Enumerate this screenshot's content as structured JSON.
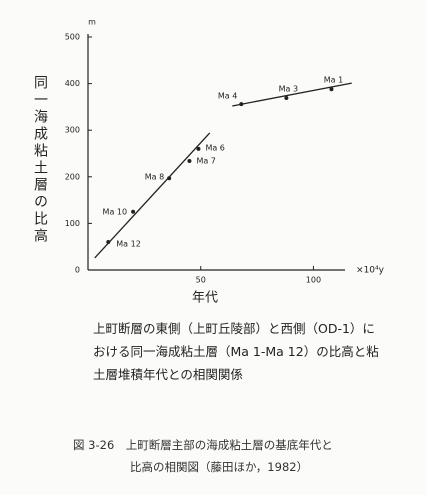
{
  "chart_data": {
    "type": "scatter",
    "y_unit": "m",
    "x_unit": "×10⁴y",
    "ylabel": "同一海成粘土層の比高",
    "xlabel": "年代",
    "points": {
      "labels": [
        "Ma 12",
        "Ma 10",
        "Ma 8",
        "Ma 7",
        "Ma 6",
        "Ma 4",
        "Ma 3",
        "Ma 1"
      ],
      "x": [
        9,
        20,
        36,
        45,
        49,
        68,
        88,
        108
      ],
      "y": [
        60,
        125,
        197,
        234,
        260,
        356,
        369,
        388
      ]
    },
    "trend_lines": [
      {
        "x": [
          3,
          54
        ],
        "y": [
          26,
          294
        ]
      },
      {
        "x": [
          64,
          117
        ],
        "y": [
          352,
          401
        ]
      }
    ],
    "xlim": [
      0,
      114
    ],
    "ylim": [
      0,
      500
    ],
    "xticks": [
      50,
      100
    ],
    "yticks": [
      0,
      100,
      200,
      300,
      400,
      500
    ],
    "color": "#222222",
    "description": [
      "上町断層の東側（上町丘陵部）と西側（OD-1）に",
      "おける同一海成粘土層（Ma 1-Ma 12）の比高と粘",
      "土層堆積年代との相関関係"
    ],
    "caption": [
      "図 3-26　上町断層主部の海成粘土層の基底年代と",
      "比高の相関図（藤田ほか，1982）"
    ]
  }
}
